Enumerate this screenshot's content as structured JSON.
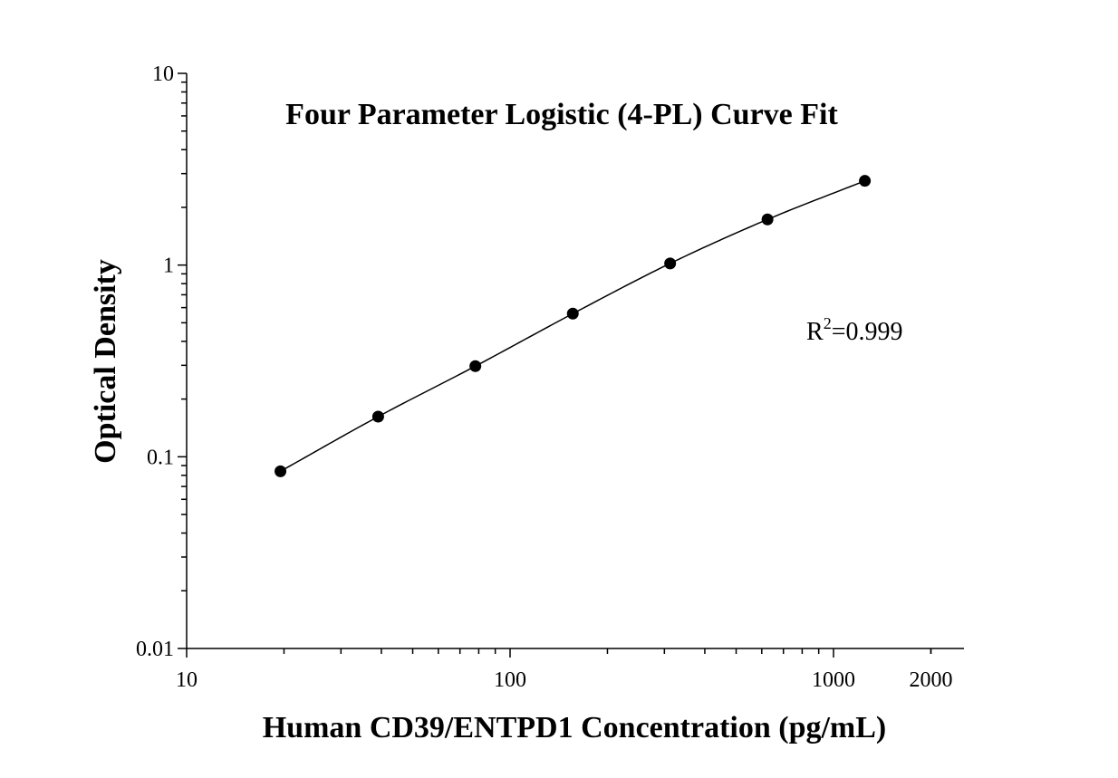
{
  "chart_data": {
    "type": "scatter",
    "title": "Four Parameter Logistic (4-PL) Curve Fit",
    "xlabel": "Human CD39/ENTPD1 Concentration (pg/mL)",
    "ylabel": "Optical Density",
    "x_scale": "log",
    "y_scale": "log",
    "xlim": [
      10,
      2000
    ],
    "ylim": [
      0.01,
      10
    ],
    "x_ticks": [
      "10",
      "100",
      "1000",
      "2000"
    ],
    "y_ticks": [
      "0.01",
      "0.1",
      "1",
      "10"
    ],
    "grid": false,
    "annotation": {
      "base": "R",
      "sup": "2",
      "rest": "=0.999"
    },
    "series": [
      {
        "x": [
          19.5,
          39.1,
          78.1,
          156.3,
          312.5,
          625,
          1250
        ],
        "y": [
          0.084,
          0.162,
          0.297,
          0.558,
          1.02,
          1.73,
          2.75
        ]
      }
    ],
    "colors": {
      "marker": "#000000",
      "line": "#000000"
    }
  }
}
